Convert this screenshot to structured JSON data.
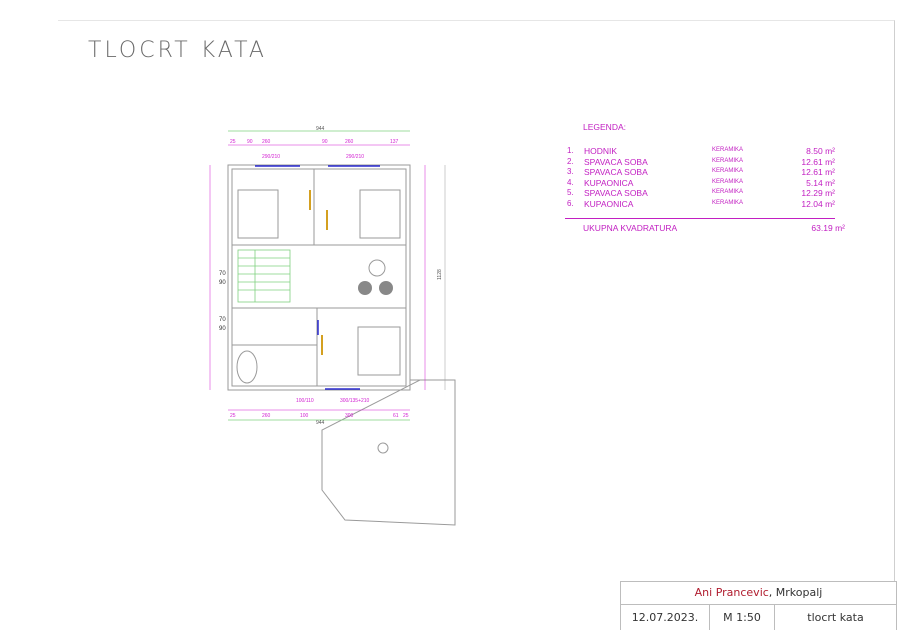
{
  "title": "TLOCRT KATA",
  "legend": {
    "heading": "LEGENDA:",
    "unit": "m²",
    "rooms": [
      {
        "num": "1.",
        "name": "HODNIK",
        "material": "KERAMIKA",
        "area": "8.50"
      },
      {
        "num": "2.",
        "name": "SPAVACA SOBA",
        "material": "KERAMIKA",
        "area": "12.61"
      },
      {
        "num": "3.",
        "name": "SPAVACA SOBA",
        "material": "KERAMIKA",
        "area": "12.61"
      },
      {
        "num": "4.",
        "name": "KUPAONICA",
        "material": "KERAMIKA",
        "area": "5.14"
      },
      {
        "num": "5.",
        "name": "SPAVACA SOBA",
        "material": "KERAMIKA",
        "area": "12.29"
      },
      {
        "num": "6.",
        "name": "KUPAONICA",
        "material": "KERAMIKA",
        "area": "12.04"
      }
    ],
    "total_label": "UKUPNA KVADRATURA",
    "total_area": "63.19"
  },
  "plan": {
    "overall_width": "944",
    "overall_height": "1128",
    "top_dims": [
      "25",
      "90",
      "260",
      "90",
      "260",
      "137"
    ],
    "bottom_dims": [
      "25",
      "260",
      "100",
      "300",
      "61",
      "25"
    ],
    "window_labels": [
      "290/210",
      "290/210",
      "100/110",
      "300/135+210"
    ],
    "side_labels": [
      "70",
      "90",
      "70",
      "90"
    ],
    "colors": {
      "walls": "#9a9a9a",
      "dims": "#d21fd2",
      "windows": "#2a2ad0",
      "doors": "#d4a020",
      "stairs": "#7fd07f"
    }
  },
  "title_block": {
    "author": "Ani Prancevic",
    "location": ", Mrkopalj",
    "date": "12.07.2023.",
    "scale": "M 1:50",
    "sheet": "tlocrt kata"
  }
}
